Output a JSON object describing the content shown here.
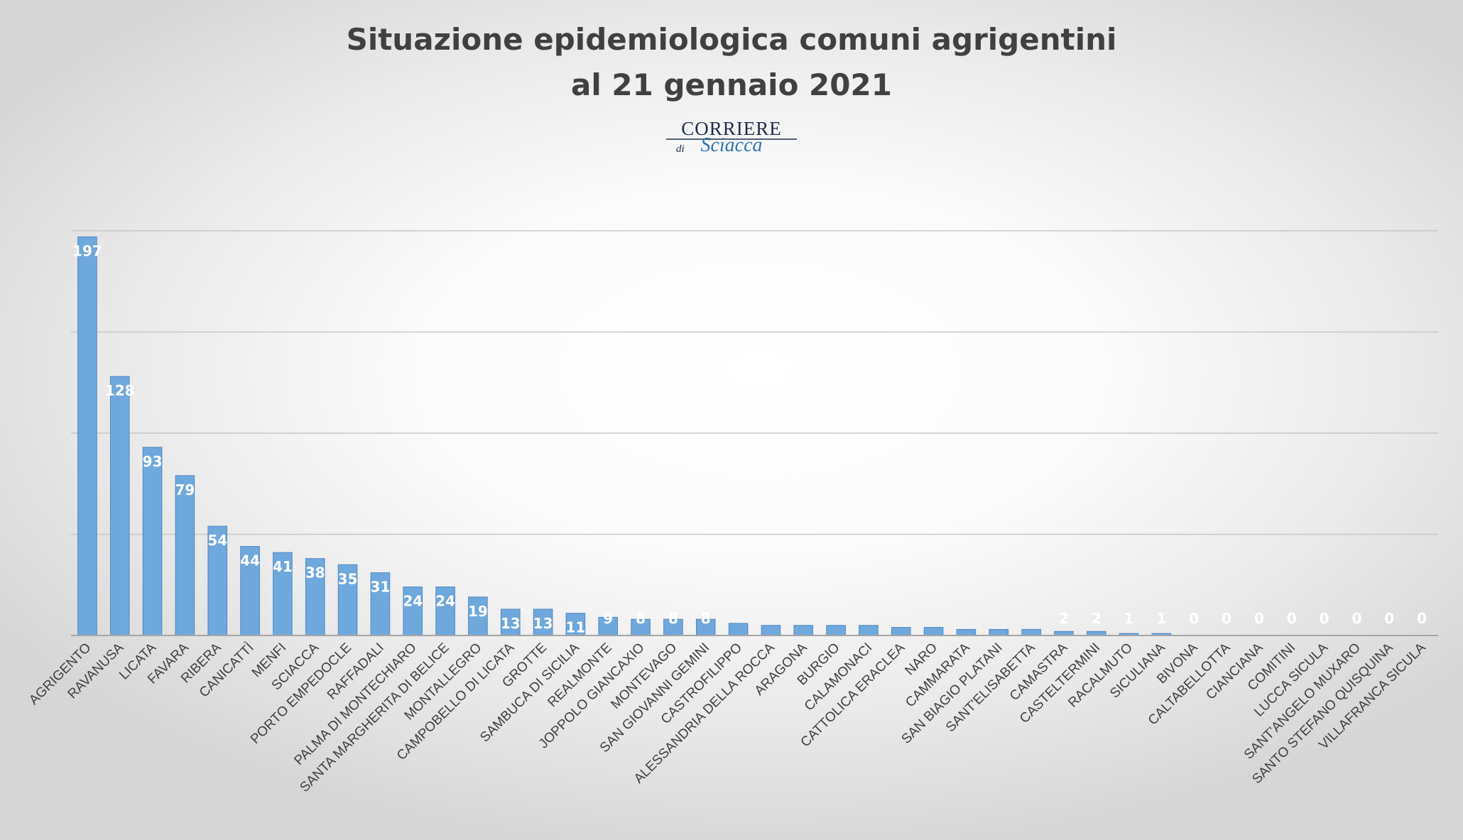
{
  "chart_data": {
    "type": "bar",
    "title": "Situazione epidemiologica comuni agrigentini",
    "subtitle": "al 21 gennaio 2021",
    "xlabel": "",
    "ylabel": "",
    "ylim": [
      0,
      200
    ],
    "grid": true,
    "legend": "none",
    "bar_color": "#6fa8dc",
    "categories": [
      "AGRIGENTO",
      "RAVANUSA",
      "LICATA",
      "FAVARA",
      "RIBERA",
      "CANICATTÌ",
      "MENFI",
      "SCIACCA",
      "PORTO EMPEDOCLE",
      "RAFFADALI",
      "PALMA DI MONTECHIARO",
      "SANTA MARGHERITA DI BELICE",
      "MONTALLEGRO",
      "CAMPOBELLO DI LICATA",
      "GROTTE",
      "SAMBUCA DI SICILIA",
      "REALMONTE",
      "JOPPOLO GIANCAXIO",
      "MONTEVAGO",
      "SAN GIOVANNI GEMINI",
      "CASTROFILIPPO",
      "ALESSANDRIA DELLA ROCCA",
      "ARAGONA",
      "BURGIO",
      "CALAMONACI",
      "CATTOLICA ERACLEA",
      "NARO",
      "CAMMARATA",
      "SAN BIAGIO PLATANI",
      "SANT'ELISABETTA",
      "CAMASTRA",
      "CASTELTERMINI",
      "RACALMUTO",
      "SICULIANA",
      "BIVONA",
      "CALTABELLOTTA",
      "CIANCIANA",
      "COMITINI",
      "LUCCA SICULA",
      "SANT'ANGELO MUXARO",
      "SANTO STEFANO QUISQUINA",
      "VILLAFRANCA SICULA"
    ],
    "values": [
      197,
      128,
      93,
      79,
      54,
      44,
      41,
      38,
      35,
      31,
      24,
      24,
      19,
      13,
      13,
      11,
      9,
      8,
      8,
      8,
      6,
      5,
      5,
      5,
      5,
      4,
      4,
      3,
      3,
      3,
      2,
      2,
      1,
      1,
      0,
      0,
      0,
      0,
      0,
      0,
      0,
      0
    ],
    "data_labels": [
      "197",
      "128",
      "93",
      "79",
      "54",
      "44",
      "41",
      "38",
      "35",
      "31",
      "24",
      "24",
      "19",
      "13",
      "13",
      "11",
      "9",
      "8",
      "8",
      "8",
      "",
      "",
      "",
      "",
      "",
      "",
      "",
      "",
      "",
      "",
      "2",
      "2",
      "1",
      "1",
      "0",
      "0",
      "0",
      "0",
      "0",
      "0",
      "0",
      "0"
    ]
  },
  "logo": {
    "top": "CORRIERE",
    "di": "di",
    "bottom": "Sciacca"
  }
}
